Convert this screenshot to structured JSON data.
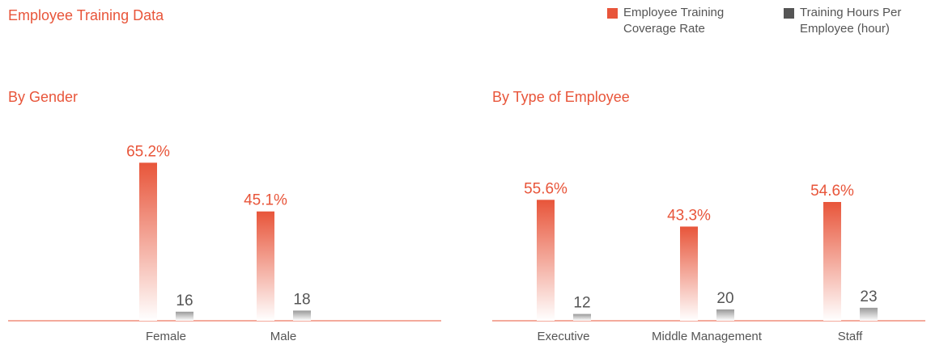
{
  "header": {
    "title": "Employee Training Data"
  },
  "chart_data": [
    {
      "type": "bar",
      "title": "By Gender",
      "categories": [
        "Female",
        "Male"
      ],
      "ylim": [
        0,
        70
      ],
      "y2lim": [
        0,
        300
      ],
      "series": [
        {
          "name": "Employee Training Coverage Rate",
          "color": "#e8553a",
          "values": [
            65.2,
            45.1
          ],
          "value_labels": [
            "65.2%",
            "45.1%"
          ]
        },
        {
          "name": "Training Hours Per Employee (hour)",
          "color": "#555555",
          "axis": "y2",
          "values": [
            16,
            18
          ]
        }
      ]
    },
    {
      "type": "bar",
      "title": "By Type of Employee",
      "categories": [
        "Executive",
        "Middle Management",
        "Staff"
      ],
      "ylim": [
        0,
        78
      ],
      "y2lim": [
        0,
        300
      ],
      "series": [
        {
          "name": "Employee Training Coverage Rate",
          "color": "#e8553a",
          "values": [
            55.6,
            43.3,
            54.6
          ],
          "value_labels": [
            "55.6%",
            "43.3%",
            "54.6%"
          ]
        },
        {
          "name": "Training Hours Per Employee (hour)",
          "color": "#555555",
          "axis": "y2",
          "values": [
            12,
            20,
            23
          ]
        }
      ]
    }
  ]
}
